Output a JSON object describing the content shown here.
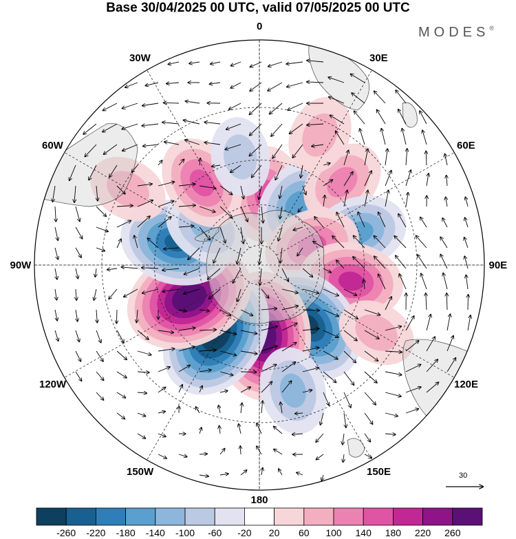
{
  "title": "Base 30/04/2025 00 UTC, valid 07/05/2025 00 UTC",
  "brand": {
    "name": "MODES",
    "mark": "®"
  },
  "map": {
    "projection": "south polar stereographic",
    "longitude_labels": [
      "0",
      "30E",
      "60E",
      "90E",
      "120E",
      "150E",
      "180",
      "150W",
      "120W",
      "90W",
      "60W",
      "30W"
    ],
    "graticule": true,
    "reference_vector": {
      "value": "30"
    }
  },
  "colorbar": {
    "tick_labels": [
      "-260",
      "-220",
      "-180",
      "-140",
      "-100",
      "-60",
      "-20",
      "20",
      "60",
      "100",
      "140",
      "180",
      "220",
      "260"
    ],
    "colors": [
      "#0f3f5e",
      "#17608f",
      "#2f7eb7",
      "#5a9fcd",
      "#8cb6dc",
      "#bcc9e3",
      "#e2e2f0",
      "#ffffff",
      "#f7d6da",
      "#f3aec0",
      "#ec82b1",
      "#e054a4",
      "#c22893",
      "#8f1487",
      "#5a1075"
    ]
  },
  "anomaly_centers": [
    {
      "sign": "positive",
      "lon": 5,
      "lat": -55,
      "level": 3
    },
    {
      "sign": "negative",
      "lon": 32,
      "lat": -55,
      "level": 3
    },
    {
      "sign": "positive",
      "lon": 45,
      "lat": -35,
      "level": 2
    },
    {
      "sign": "negative",
      "lon": 72,
      "lat": -40,
      "level": 3
    },
    {
      "sign": "positive",
      "lon": 70,
      "lat": -62,
      "level": 3
    },
    {
      "sign": "positive",
      "lon": 100,
      "lat": -45,
      "level": 4
    },
    {
      "sign": "negative",
      "lon": 140,
      "lat": -52,
      "level": 6
    },
    {
      "sign": "positive",
      "lon": 177,
      "lat": -55,
      "level": 7
    },
    {
      "sign": "negative",
      "lon": -148,
      "lat": -50,
      "level": 7
    },
    {
      "sign": "positive",
      "lon": -115,
      "lat": -52,
      "level": 7
    },
    {
      "sign": "negative",
      "lon": -75,
      "lat": -48,
      "level": 5
    },
    {
      "sign": "negative",
      "lon": -55,
      "lat": -58,
      "level": 2
    },
    {
      "sign": "positive",
      "lon": -35,
      "lat": -42,
      "level": 3
    },
    {
      "sign": "positive",
      "lon": -60,
      "lat": -22,
      "level": 1
    },
    {
      "sign": "positive",
      "lon": 25,
      "lat": -25,
      "level": 1
    },
    {
      "sign": "negative",
      "lon": -10,
      "lat": -38,
      "level": 1
    },
    {
      "sign": "negative",
      "lon": 165,
      "lat": -30,
      "level": 2
    },
    {
      "sign": "positive",
      "lon": 120,
      "lat": -28,
      "level": 1
    }
  ]
}
